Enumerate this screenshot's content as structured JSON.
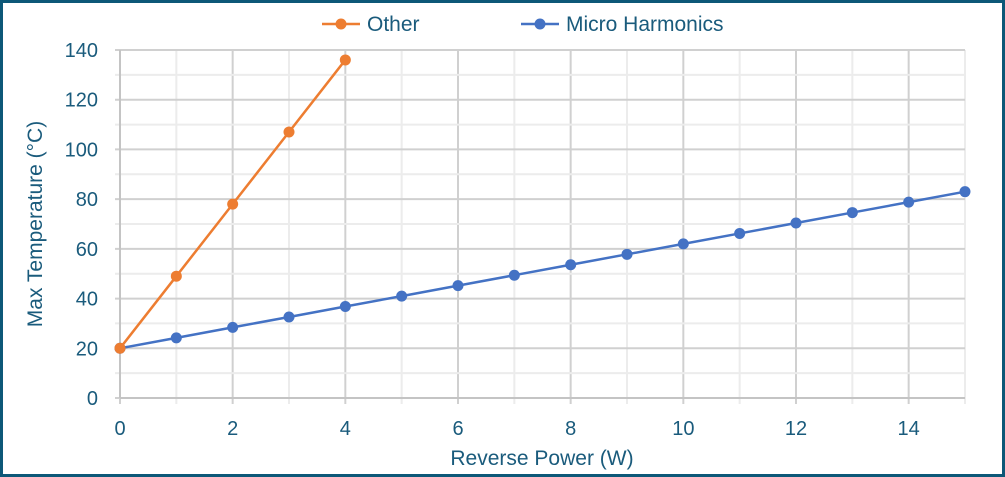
{
  "chart_data": {
    "type": "line",
    "title": "",
    "xlabel": "Reverse Power (W)",
    "ylabel": "Max Temperature (°C)",
    "xlim": [
      0,
      15
    ],
    "ylim": [
      0,
      140
    ],
    "xticks": [
      0,
      2,
      4,
      6,
      8,
      10,
      12,
      14
    ],
    "yticks": [
      0,
      20,
      40,
      60,
      80,
      100,
      120,
      140
    ],
    "grid": "major and minor",
    "legend_position": "top",
    "series": [
      {
        "name": "Other",
        "color": "#ed7d31",
        "x": [
          0,
          1,
          2,
          3,
          4
        ],
        "y": [
          20,
          49,
          78,
          107,
          136
        ]
      },
      {
        "name": "Micro Harmonics",
        "color": "#4472c4",
        "x": [
          0,
          1,
          2,
          3,
          4,
          5,
          6,
          7,
          8,
          9,
          10,
          11,
          12,
          13,
          14,
          15
        ],
        "y": [
          20,
          24.2,
          28.4,
          32.6,
          36.8,
          41,
          45.2,
          49.4,
          53.6,
          57.8,
          62,
          66.2,
          70.4,
          74.6,
          78.8,
          83
        ]
      }
    ]
  }
}
